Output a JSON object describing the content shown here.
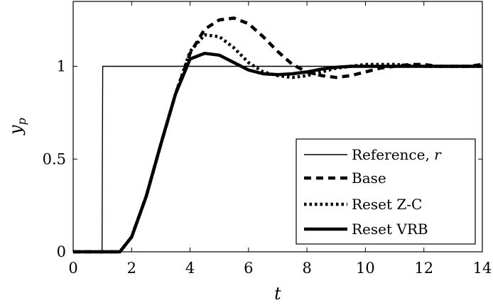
{
  "chart_data": {
    "type": "line",
    "xlabel": "t",
    "ylabel": "y_p",
    "xlim": [
      0,
      14
    ],
    "ylim": [
      0,
      1.35
    ],
    "xticks": [
      "0",
      "2",
      "4",
      "6",
      "8",
      "10",
      "12",
      "14"
    ],
    "yticks": [
      "0",
      "0.5",
      "1"
    ],
    "grid": false,
    "legend_position": "bottom-right",
    "series": [
      {
        "name": "Reference, r",
        "style": "solid-thin",
        "color": "#000000",
        "x": [
          0,
          0.99,
          1.0,
          1.01,
          14
        ],
        "y": [
          0,
          0,
          0.5,
          1,
          1
        ]
      },
      {
        "name": "Base",
        "style": "dashed",
        "color": "#000000",
        "x": [
          0,
          1.6,
          2.0,
          2.5,
          3.0,
          3.5,
          4.0,
          4.5,
          5.0,
          5.5,
          6.0,
          6.5,
          7.0,
          7.5,
          8.0,
          8.5,
          9.0,
          9.5,
          10.0,
          10.5,
          11.0,
          11.5,
          12.0,
          12.5,
          13.0,
          13.5,
          14.0
        ],
        "y": [
          0,
          0,
          0.08,
          0.3,
          0.58,
          0.85,
          1.07,
          1.2,
          1.25,
          1.26,
          1.23,
          1.16,
          1.08,
          1.01,
          0.97,
          0.95,
          0.94,
          0.95,
          0.97,
          0.99,
          1.0,
          1.01,
          1.01,
          1.0,
          1.0,
          1.0,
          1.01
        ]
      },
      {
        "name": "Reset Z-C",
        "style": "dotted",
        "color": "#000000",
        "x": [
          0,
          1.6,
          2.0,
          2.5,
          3.0,
          3.5,
          4.0,
          4.5,
          5.0,
          5.5,
          6.0,
          6.5,
          7.0,
          7.5,
          8.0,
          8.5,
          9.0,
          9.5,
          10.0,
          10.5,
          11.0,
          12.0,
          13.0,
          14.0
        ],
        "y": [
          0,
          0,
          0.08,
          0.3,
          0.58,
          0.85,
          1.08,
          1.17,
          1.16,
          1.1,
          1.02,
          0.97,
          0.95,
          0.94,
          0.95,
          0.97,
          0.99,
          1.0,
          1.01,
          1.01,
          1.01,
          1.0,
          1.0,
          1.0
        ]
      },
      {
        "name": "Reset VRB",
        "style": "solid-thick",
        "color": "#000000",
        "x": [
          0,
          1.6,
          2.0,
          2.5,
          3.0,
          3.5,
          4.0,
          4.5,
          5.0,
          5.5,
          6.0,
          6.5,
          7.0,
          7.5,
          8.0,
          8.5,
          9.0,
          9.5,
          10.0,
          10.5,
          11.0,
          12.0,
          13.0,
          14.0
        ],
        "y": [
          0,
          0,
          0.08,
          0.3,
          0.58,
          0.85,
          1.04,
          1.07,
          1.06,
          1.02,
          0.98,
          0.96,
          0.955,
          0.96,
          0.97,
          0.985,
          0.995,
          1.0,
          1.0,
          1.0,
          1.0,
          1.0,
          1.0,
          1.0
        ]
      }
    ]
  }
}
